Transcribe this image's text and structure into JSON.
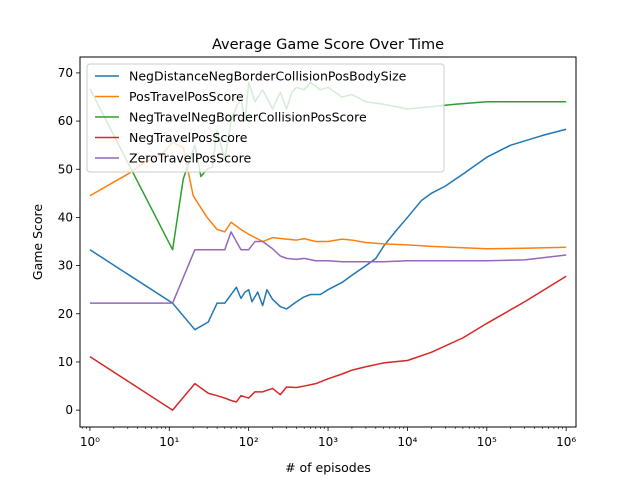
{
  "chart_data": {
    "type": "line",
    "title": "Average Game Score Over Time",
    "xlabel": "# of episodes",
    "ylabel": "Game Score",
    "xscale": "log",
    "xlim": [
      0.75,
      1330000
    ],
    "ylim": [
      -3.5,
      73.3
    ],
    "yticks": [
      0,
      10,
      20,
      30,
      40,
      50,
      60,
      70
    ],
    "xticks": [
      {
        "value": 1,
        "label": "10⁰"
      },
      {
        "value": 10,
        "label": "10¹"
      },
      {
        "value": 100,
        "label": "10²"
      },
      {
        "value": 1000,
        "label": "10³"
      },
      {
        "value": 10000,
        "label": "10⁴"
      },
      {
        "value": 100000,
        "label": "10⁵"
      },
      {
        "value": 1000000,
        "label": "10⁶"
      }
    ],
    "grid": false,
    "legend_position": "top-left",
    "series": [
      {
        "name": "NegDistanceNegBorderCollisionPosBodySize",
        "color": "#1f77b4",
        "points": [
          [
            1,
            33.3
          ],
          [
            11,
            22.2
          ],
          [
            21,
            16.7
          ],
          [
            31,
            18.3
          ],
          [
            40,
            22.2
          ],
          [
            50,
            22.2
          ],
          [
            60,
            24.0
          ],
          [
            70,
            25.5
          ],
          [
            80,
            23.2
          ],
          [
            90,
            24.5
          ],
          [
            100,
            25.0
          ],
          [
            110,
            22.5
          ],
          [
            130,
            24.5
          ],
          [
            150,
            21.7
          ],
          [
            170,
            25.0
          ],
          [
            200,
            23.0
          ],
          [
            250,
            21.5
          ],
          [
            300,
            21.0
          ],
          [
            400,
            22.5
          ],
          [
            500,
            23.5
          ],
          [
            600,
            24.0
          ],
          [
            800,
            24.0
          ],
          [
            1000,
            25.0
          ],
          [
            1500,
            26.5
          ],
          [
            2000,
            28.0
          ],
          [
            3000,
            30.0
          ],
          [
            4000,
            31.5
          ],
          [
            5000,
            34.0
          ],
          [
            7000,
            37.0
          ],
          [
            10000,
            40.0
          ],
          [
            15000,
            43.5
          ],
          [
            20000,
            45.0
          ],
          [
            30000,
            46.5
          ],
          [
            50000,
            49.0
          ],
          [
            100000,
            52.5
          ],
          [
            200000,
            55.0
          ],
          [
            500000,
            57.0
          ],
          [
            1000000,
            58.3
          ]
        ]
      },
      {
        "name": "PosTravelPosScore",
        "color": "#ff7f0e",
        "points": [
          [
            1,
            44.5
          ],
          [
            3,
            49.0
          ],
          [
            5,
            51.5
          ],
          [
            8,
            53.0
          ],
          [
            11,
            55.6
          ],
          [
            15,
            54.5
          ],
          [
            20,
            44.5
          ],
          [
            25,
            42.0
          ],
          [
            30,
            40.0
          ],
          [
            40,
            37.5
          ],
          [
            50,
            37.0
          ],
          [
            60,
            39.0
          ],
          [
            80,
            37.5
          ],
          [
            100,
            36.5
          ],
          [
            150,
            35.0
          ],
          [
            200,
            35.8
          ],
          [
            300,
            35.5
          ],
          [
            400,
            35.3
          ],
          [
            500,
            35.6
          ],
          [
            700,
            35.0
          ],
          [
            1000,
            35.0
          ],
          [
            1500,
            35.5
          ],
          [
            2000,
            35.3
          ],
          [
            3000,
            34.8
          ],
          [
            5000,
            34.5
          ],
          [
            10000,
            34.3
          ],
          [
            20000,
            34.0
          ],
          [
            50000,
            33.7
          ],
          [
            100000,
            33.5
          ],
          [
            300000,
            33.6
          ],
          [
            1000000,
            33.8
          ]
        ]
      },
      {
        "name": "NegTravelNegBorderCollisionPosScore",
        "color": "#2ca02c",
        "points": [
          [
            1,
            66.7
          ],
          [
            11,
            33.3
          ],
          [
            15,
            48.0
          ],
          [
            21,
            55.0
          ],
          [
            25,
            48.5
          ],
          [
            30,
            50.0
          ],
          [
            35,
            50.5
          ],
          [
            40,
            58.0
          ],
          [
            50,
            52.0
          ],
          [
            60,
            60.0
          ],
          [
            70,
            63.0
          ],
          [
            80,
            64.5
          ],
          [
            90,
            60.0
          ],
          [
            100,
            68.0
          ],
          [
            120,
            64.0
          ],
          [
            150,
            66.5
          ],
          [
            200,
            62.5
          ],
          [
            250,
            66.0
          ],
          [
            300,
            62.5
          ],
          [
            350,
            66.0
          ],
          [
            400,
            67.0
          ],
          [
            500,
            66.5
          ],
          [
            600,
            68.0
          ],
          [
            800,
            66.5
          ],
          [
            1000,
            67.0
          ],
          [
            1500,
            65.0
          ],
          [
            2000,
            65.5
          ],
          [
            3000,
            64.0
          ],
          [
            5000,
            63.5
          ],
          [
            10000,
            62.5
          ],
          [
            20000,
            63.0
          ],
          [
            40000,
            63.5
          ],
          [
            100000,
            64.0
          ],
          [
            300000,
            64.0
          ],
          [
            1000000,
            64.0
          ]
        ]
      },
      {
        "name": "NegTravelPosScore",
        "color": "#d62728",
        "points": [
          [
            1,
            11.1
          ],
          [
            11,
            0.0
          ],
          [
            21,
            5.5
          ],
          [
            31,
            3.5
          ],
          [
            40,
            3.0
          ],
          [
            50,
            2.5
          ],
          [
            60,
            2.0
          ],
          [
            70,
            1.7
          ],
          [
            80,
            3.0
          ],
          [
            100,
            2.5
          ],
          [
            120,
            3.8
          ],
          [
            150,
            3.8
          ],
          [
            200,
            4.5
          ],
          [
            250,
            3.2
          ],
          [
            300,
            4.8
          ],
          [
            400,
            4.7
          ],
          [
            500,
            5.0
          ],
          [
            700,
            5.5
          ],
          [
            1000,
            6.5
          ],
          [
            1500,
            7.5
          ],
          [
            2000,
            8.3
          ],
          [
            3000,
            9.0
          ],
          [
            5000,
            9.8
          ],
          [
            10000,
            10.3
          ],
          [
            20000,
            12.0
          ],
          [
            50000,
            15.0
          ],
          [
            100000,
            18.0
          ],
          [
            300000,
            22.5
          ],
          [
            1000000,
            27.8
          ]
        ]
      },
      {
        "name": "ZeroTravelPosScore",
        "color": "#9467bd",
        "points": [
          [
            1,
            22.2
          ],
          [
            11,
            22.2
          ],
          [
            21,
            33.3
          ],
          [
            31,
            33.3
          ],
          [
            40,
            33.3
          ],
          [
            50,
            33.3
          ],
          [
            60,
            37.0
          ],
          [
            70,
            35.0
          ],
          [
            80,
            33.3
          ],
          [
            100,
            33.3
          ],
          [
            120,
            35.0
          ],
          [
            150,
            35.0
          ],
          [
            200,
            33.5
          ],
          [
            250,
            32.0
          ],
          [
            300,
            31.5
          ],
          [
            400,
            31.3
          ],
          [
            500,
            31.5
          ],
          [
            700,
            31.0
          ],
          [
            1000,
            31.0
          ],
          [
            1500,
            30.8
          ],
          [
            2000,
            30.8
          ],
          [
            5000,
            30.8
          ],
          [
            10000,
            31.0
          ],
          [
            30000,
            31.0
          ],
          [
            100000,
            31.0
          ],
          [
            300000,
            31.2
          ],
          [
            1000000,
            32.2
          ]
        ]
      }
    ]
  }
}
